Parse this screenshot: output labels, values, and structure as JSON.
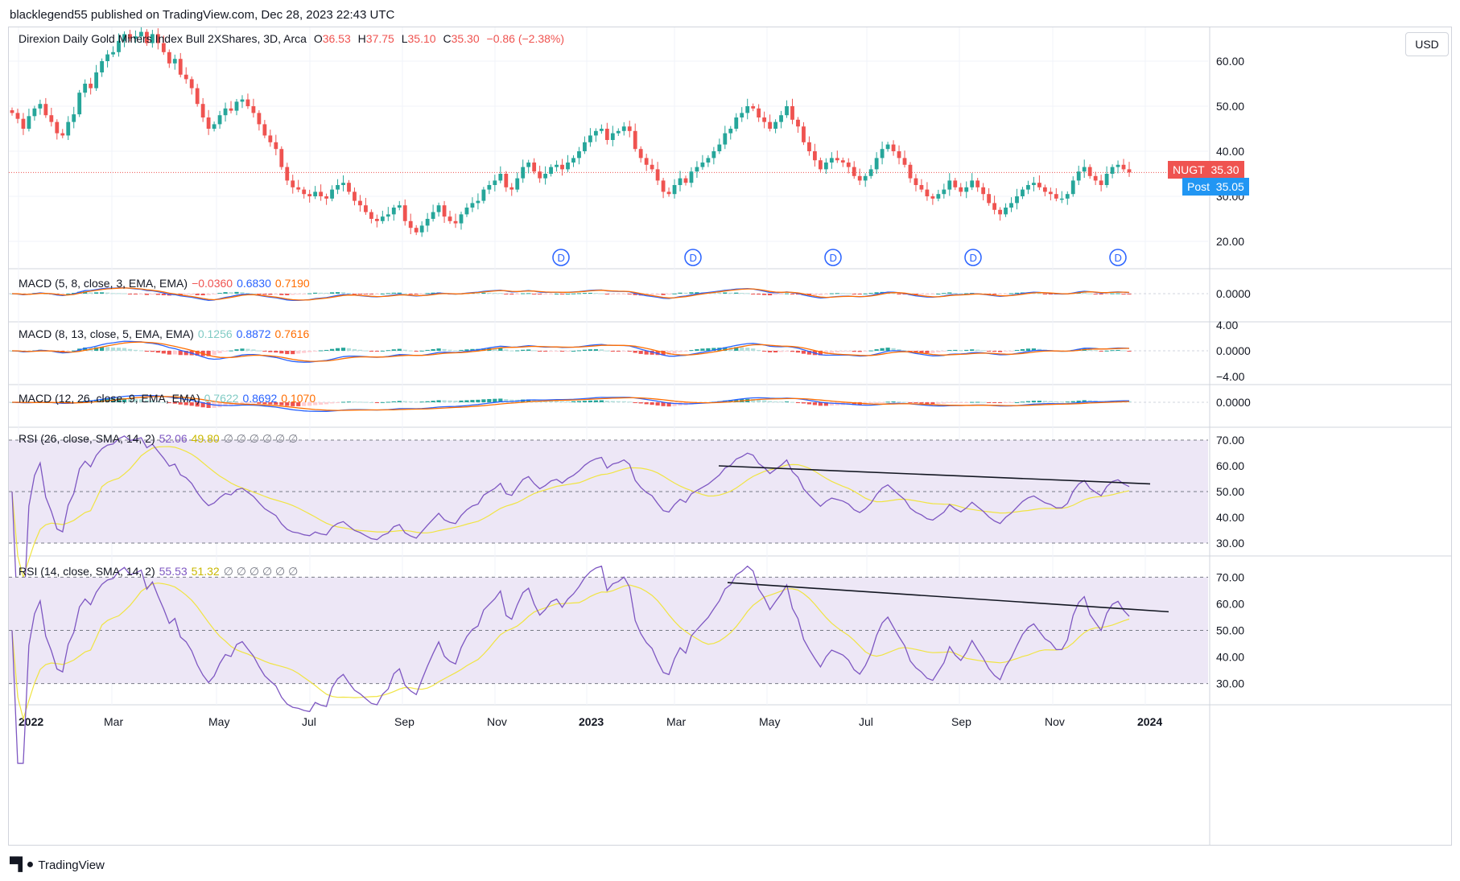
{
  "header": {
    "publisher": "blacklegend55 published on TradingView.com, Dec 28, 2023 22:43 UTC"
  },
  "main": {
    "symbol_title": "Direxion Daily Gold Miners Index Bull 2XShares, 3D, Arca",
    "ohlc": {
      "o_label": "O",
      "o": "36.53",
      "h_label": "H",
      "h": "37.75",
      "l_label": "L",
      "l": "35.10",
      "c_label": "C",
      "c": "35.30",
      "change": "−0.86 (−2.38%)"
    },
    "currency": "USD",
    "last_tag": {
      "label": "NUGT",
      "value": "35.30"
    },
    "post_tag": {
      "label": "Post",
      "value": "35.05"
    },
    "y_ticks": [
      "60.00",
      "50.00",
      "40.00",
      "30.00",
      "20.00"
    ]
  },
  "indicators": {
    "macd1": {
      "label": "MACD (5, 8, close, 3, EMA, EMA)",
      "hist": "−0.0360",
      "macd": "0.6830",
      "signal": "0.7190",
      "ticks": [
        "0.0000"
      ]
    },
    "macd2": {
      "label": "MACD (8, 13, close, 5, EMA, EMA)",
      "hist": "0.1256",
      "macd": "0.8872",
      "signal": "0.7616",
      "ticks": [
        "4.00",
        "0.0000",
        "−4.00"
      ]
    },
    "macd3": {
      "label": "MACD (12, 26, close, 9, EMA, EMA)",
      "hist": "0.7622",
      "macd": "0.8692",
      "signal": "0.1070",
      "ticks": [
        "0.0000"
      ]
    },
    "rsi1": {
      "label": "RSI (26, close, SMA, 14, 2)",
      "rsi": "52.06",
      "sma": "49.80",
      "extras": "∅ ∅ ∅ ∅ ∅ ∅",
      "ticks": [
        "70.00",
        "60.00",
        "50.00",
        "40.00",
        "30.00"
      ]
    },
    "rsi2": {
      "label": "RSI (14, close, SMA, 14, 2)",
      "rsi": "55.53",
      "sma": "51.32",
      "extras": "∅ ∅ ∅ ∅ ∅ ∅",
      "ticks": [
        "70.00",
        "60.00",
        "50.00",
        "40.00",
        "30.00"
      ]
    }
  },
  "dividend_marker": "D",
  "time_axis": [
    "2022",
    "Mar",
    "May",
    "Jul",
    "Sep",
    "Nov",
    "2023",
    "Mar",
    "May",
    "Jul",
    "Sep",
    "Nov",
    "2024"
  ],
  "footer": {
    "brand": "TradingView"
  },
  "colors": {
    "up": "#26a69a",
    "down": "#ef5350",
    "macd": "#2962ff",
    "signal": "#ff6d00",
    "rsi": "#7e57c2",
    "rsi_sma": "#f0e442",
    "rsi_band": "#ede7f6",
    "dividend": "#2962ff"
  },
  "chart_data": [
    {
      "type": "candlestick",
      "title": "Direxion Daily Gold Miners Index Bull 2XShares, 3D, Arca",
      "ylim": [
        15,
        67
      ],
      "close": [
        48.5,
        47.2,
        45.0,
        47.8,
        49.5,
        50.5,
        48.0,
        46.5,
        44.0,
        43.5,
        46.5,
        48.2,
        53.0,
        55.0,
        54.0,
        57.5,
        60.0,
        61.5,
        62.0,
        64.5,
        66.0,
        65.0,
        65.5,
        66.5,
        64.0,
        66.0,
        64.0,
        62.0,
        59.5,
        60.5,
        57.0,
        56.0,
        54.0,
        50.5,
        47.5,
        45.0,
        46.0,
        48.0,
        49.5,
        49.0,
        51.0,
        51.5,
        50.0,
        48.5,
        46.0,
        43.5,
        42.0,
        40.5,
        36.5,
        33.5,
        32.0,
        31.5,
        30.5,
        30.0,
        31.0,
        30.0,
        29.5,
        31.5,
        32.5,
        33.0,
        31.0,
        29.0,
        28.0,
        26.5,
        25.0,
        24.5,
        25.5,
        26.0,
        27.5,
        28.0,
        24.5,
        23.0,
        22.0,
        23.5,
        25.0,
        26.5,
        28.0,
        25.5,
        24.5,
        24.0,
        26.0,
        27.5,
        28.5,
        29.0,
        31.5,
        32.5,
        33.5,
        35.0,
        32.0,
        31.5,
        34.0,
        36.5,
        37.5,
        35.5,
        34.0,
        35.0,
        36.5,
        37.0,
        36.0,
        37.5,
        38.5,
        40.0,
        42.0,
        43.5,
        44.5,
        45.0,
        42.5,
        44.0,
        44.5,
        45.5,
        44.5,
        40.5,
        38.5,
        37.0,
        36.0,
        33.5,
        31.0,
        30.5,
        32.5,
        34.0,
        33.0,
        35.5,
        36.5,
        37.5,
        38.5,
        40.0,
        41.5,
        44.0,
        45.0,
        47.5,
        48.5,
        50.0,
        49.5,
        47.5,
        46.5,
        45.0,
        46.5,
        48.0,
        50.0,
        47.0,
        45.5,
        42.0,
        40.0,
        38.0,
        36.0,
        37.5,
        38.5,
        38.0,
        37.5,
        36.5,
        34.5,
        33.5,
        34.5,
        36.0,
        38.5,
        40.5,
        41.5,
        40.0,
        38.5,
        37.0,
        34.0,
        32.5,
        31.5,
        30.0,
        29.5,
        30.5,
        31.5,
        33.5,
        32.0,
        31.0,
        32.0,
        33.5,
        32.0,
        30.5,
        28.5,
        27.0,
        26.0,
        27.5,
        28.5,
        30.0,
        31.5,
        32.5,
        33.0,
        32.0,
        31.0,
        30.5,
        29.5,
        29.5,
        30.5,
        33.5,
        35.5,
        36.5,
        34.5,
        33.5,
        32.5,
        35.0,
        36.5,
        37.0,
        36.0,
        35.3
      ],
      "ohlc_readout": {
        "open": 36.53,
        "high": 37.75,
        "low": 35.1,
        "close": 35.3,
        "change": -0.86,
        "change_pct": -2.38
      },
      "post_market": 35.05,
      "y_ticks": [
        20,
        30,
        40,
        50,
        60
      ]
    },
    {
      "type": "line",
      "title": "MACD (5, 8, close, 3, EMA, EMA)",
      "series": [
        {
          "name": "MACD",
          "last": 0.683
        },
        {
          "name": "Signal",
          "last": 0.719
        },
        {
          "name": "Histogram",
          "last": -0.036
        }
      ]
    },
    {
      "type": "line",
      "title": "MACD (8, 13, close, 5, EMA, EMA)",
      "series": [
        {
          "name": "MACD",
          "last": 0.8872
        },
        {
          "name": "Signal",
          "last": 0.7616
        },
        {
          "name": "Histogram",
          "last": 0.1256
        }
      ],
      "ylim": [
        -4,
        4
      ]
    },
    {
      "type": "line",
      "title": "MACD (12, 26, close, 9, EMA, EMA)",
      "series": [
        {
          "name": "MACD",
          "last": 0.8692
        },
        {
          "name": "Signal",
          "last": 0.107
        },
        {
          "name": "Histogram",
          "last": 0.7622
        }
      ]
    },
    {
      "type": "line",
      "title": "RSI (26, close, SMA, 14, 2)",
      "ylim": [
        25,
        75
      ],
      "series": [
        {
          "name": "RSI",
          "last": 52.06
        },
        {
          "name": "SMA",
          "last": 49.8
        }
      ],
      "bands": [
        30,
        50,
        70
      ],
      "trendline": {
        "from": 60,
        "to": 53
      }
    },
    {
      "type": "line",
      "title": "RSI (14, close, SMA, 14, 2)",
      "ylim": [
        22,
        78
      ],
      "series": [
        {
          "name": "RSI",
          "last": 55.53
        },
        {
          "name": "SMA",
          "last": 51.32
        }
      ],
      "bands": [
        30,
        50,
        70
      ],
      "trendline": {
        "from": 68,
        "to": 57
      }
    }
  ]
}
